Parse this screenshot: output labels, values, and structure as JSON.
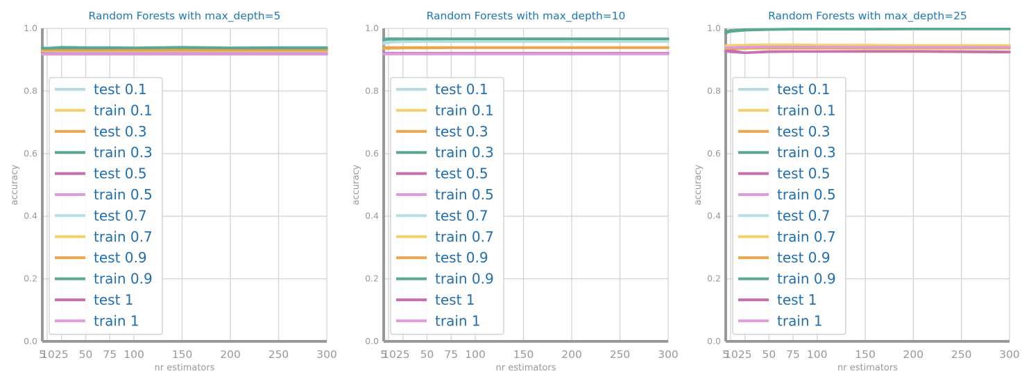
{
  "colors": {
    "title": "#1f77b4",
    "axis_label": "#999999",
    "tick_label": "#999999",
    "grid": "#d3d3d3",
    "spine": "#999999",
    "legend_text": "#1f6fb0",
    "legend_border": "#d3d3d3"
  },
  "chart_data": [
    {
      "type": "line",
      "title": "Random Forests with max_depth=5",
      "xlabel": "nr estimators",
      "ylabel": "accuracy",
      "xlim": [
        5,
        300
      ],
      "ylim": [
        0.0,
        1.0
      ],
      "xticks": [
        5,
        10,
        25,
        50,
        75,
        100,
        150,
        200,
        250,
        300
      ],
      "yticks": [
        0.0,
        0.2,
        0.4,
        0.6,
        0.8,
        1.0
      ],
      "xtick_labels": [
        "5",
        "10",
        "25",
        "50",
        "75",
        "100",
        "150",
        "200",
        "250",
        "300"
      ],
      "ytick_labels": [
        "0.0",
        "0.2",
        "0.4",
        "0.6",
        "0.8",
        "1.0"
      ],
      "grid": true,
      "legend_position": "center-left",
      "x": [
        5,
        10,
        25,
        50,
        75,
        100,
        150,
        200,
        250,
        300
      ],
      "series": [
        {
          "name": "test 0.1",
          "color": "#b5dde3",
          "values": [
            0.935,
            0.93,
            0.932,
            0.931,
            0.931,
            0.931,
            0.932,
            0.931,
            0.931,
            0.931
          ]
        },
        {
          "name": "train 0.1",
          "color": "#f2d06b",
          "values": [
            0.93,
            0.928,
            0.929,
            0.929,
            0.929,
            0.929,
            0.929,
            0.929,
            0.929,
            0.929
          ]
        },
        {
          "name": "test 0.3",
          "color": "#eaa64b",
          "values": [
            0.933,
            0.932,
            0.933,
            0.933,
            0.933,
            0.933,
            0.933,
            0.933,
            0.933,
            0.933
          ]
        },
        {
          "name": "train 0.3",
          "color": "#5aa88f",
          "values": [
            0.938,
            0.937,
            0.94,
            0.939,
            0.939,
            0.938,
            0.94,
            0.938,
            0.939,
            0.939
          ]
        },
        {
          "name": "test 0.5",
          "color": "#c96fae",
          "values": [
            0.921,
            0.919,
            0.92,
            0.92,
            0.92,
            0.92,
            0.92,
            0.92,
            0.92,
            0.92
          ]
        },
        {
          "name": "train 0.5",
          "color": "#de9bd9",
          "values": [
            0.917,
            0.917,
            0.917,
            0.917,
            0.917,
            0.917,
            0.917,
            0.917,
            0.917,
            0.917
          ]
        },
        {
          "name": "test 0.7",
          "color": "#b5dde3",
          "values": [
            0.928,
            0.928,
            0.928,
            0.928,
            0.928,
            0.928,
            0.928,
            0.928,
            0.928,
            0.928
          ]
        },
        {
          "name": "train 0.7",
          "color": "#f2d06b",
          "values": [
            0.929,
            0.929,
            0.929,
            0.929,
            0.929,
            0.929,
            0.929,
            0.929,
            0.929,
            0.929
          ]
        },
        {
          "name": "test 0.9",
          "color": "#eaa64b",
          "values": [
            0.93,
            0.93,
            0.93,
            0.93,
            0.93,
            0.93,
            0.93,
            0.93,
            0.93,
            0.93
          ]
        },
        {
          "name": "train 0.9",
          "color": "#5aa88f",
          "values": [
            0.936,
            0.936,
            0.937,
            0.937,
            0.937,
            0.937,
            0.938,
            0.937,
            0.937,
            0.937
          ]
        },
        {
          "name": "test 1",
          "color": "#c96fae",
          "values": [
            0.92,
            0.92,
            0.92,
            0.92,
            0.92,
            0.92,
            0.92,
            0.92,
            0.92,
            0.92
          ]
        },
        {
          "name": "train 1",
          "color": "#de9bd9",
          "values": [
            0.918,
            0.918,
            0.918,
            0.918,
            0.918,
            0.918,
            0.918,
            0.918,
            0.918,
            0.918
          ]
        }
      ]
    },
    {
      "type": "line",
      "title": "Random Forests with max_depth=10",
      "xlabel": "nr estimators",
      "ylabel": "accuracy",
      "xlim": [
        5,
        300
      ],
      "ylim": [
        0.0,
        1.0
      ],
      "xticks": [
        5,
        10,
        25,
        50,
        75,
        100,
        150,
        200,
        250,
        300
      ],
      "yticks": [
        0.0,
        0.2,
        0.4,
        0.6,
        0.8,
        1.0
      ],
      "xtick_labels": [
        "5",
        "10",
        "25",
        "50",
        "75",
        "100",
        "150",
        "200",
        "250",
        "300"
      ],
      "ytick_labels": [
        "0.0",
        "0.2",
        "0.4",
        "0.6",
        "0.8",
        "1.0"
      ],
      "grid": true,
      "legend_position": "center-left",
      "x": [
        5,
        10,
        25,
        50,
        75,
        100,
        150,
        200,
        250,
        300
      ],
      "series": [
        {
          "name": "test 0.1",
          "color": "#b5dde3",
          "values": [
            0.95,
            0.955,
            0.957,
            0.958,
            0.958,
            0.958,
            0.958,
            0.958,
            0.958,
            0.958
          ]
        },
        {
          "name": "train 0.1",
          "color": "#f2d06b",
          "values": [
            0.935,
            0.937,
            0.938,
            0.938,
            0.938,
            0.938,
            0.938,
            0.938,
            0.938,
            0.938
          ]
        },
        {
          "name": "test 0.3",
          "color": "#eaa64b",
          "values": [
            0.936,
            0.936,
            0.937,
            0.937,
            0.938,
            0.938,
            0.938,
            0.938,
            0.938,
            0.938
          ]
        },
        {
          "name": "train 0.3",
          "color": "#5aa88f",
          "values": [
            0.962,
            0.964,
            0.965,
            0.965,
            0.966,
            0.966,
            0.966,
            0.966,
            0.966,
            0.966
          ]
        },
        {
          "name": "test 0.5",
          "color": "#c96fae",
          "values": [
            0.921,
            0.921,
            0.921,
            0.921,
            0.921,
            0.921,
            0.921,
            0.921,
            0.921,
            0.921
          ]
        },
        {
          "name": "train 0.5",
          "color": "#de9bd9",
          "values": [
            0.918,
            0.918,
            0.918,
            0.918,
            0.918,
            0.918,
            0.918,
            0.918,
            0.918,
            0.918
          ]
        },
        {
          "name": "test 0.7",
          "color": "#b5dde3",
          "values": [
            0.955,
            0.957,
            0.958,
            0.958,
            0.958,
            0.958,
            0.958,
            0.958,
            0.958,
            0.958
          ]
        },
        {
          "name": "train 0.7",
          "color": "#f2d06b",
          "values": [
            0.939,
            0.939,
            0.939,
            0.939,
            0.939,
            0.939,
            0.939,
            0.939,
            0.939,
            0.939
          ]
        },
        {
          "name": "test 0.9",
          "color": "#eaa64b",
          "values": [
            0.939,
            0.939,
            0.939,
            0.939,
            0.939,
            0.939,
            0.939,
            0.939,
            0.939,
            0.939
          ]
        },
        {
          "name": "train 0.9",
          "color": "#5aa88f",
          "values": [
            0.966,
            0.967,
            0.967,
            0.967,
            0.967,
            0.967,
            0.967,
            0.967,
            0.967,
            0.967
          ]
        },
        {
          "name": "test 1",
          "color": "#c96fae",
          "values": [
            0.92,
            0.92,
            0.92,
            0.92,
            0.92,
            0.92,
            0.92,
            0.92,
            0.92,
            0.92
          ]
        },
        {
          "name": "train 1",
          "color": "#de9bd9",
          "values": [
            0.919,
            0.919,
            0.919,
            0.919,
            0.919,
            0.919,
            0.919,
            0.919,
            0.919,
            0.919
          ]
        }
      ]
    },
    {
      "type": "line",
      "title": "Random Forests with max_depth=25",
      "xlabel": "nr estimators",
      "ylabel": "accuracy",
      "xlim": [
        5,
        300
      ],
      "ylim": [
        0.0,
        1.0
      ],
      "xticks": [
        5,
        10,
        25,
        50,
        75,
        100,
        150,
        200,
        250,
        300
      ],
      "yticks": [
        0.0,
        0.2,
        0.4,
        0.6,
        0.8,
        1.0
      ],
      "xtick_labels": [
        "5",
        "10",
        "25",
        "50",
        "75",
        "100",
        "150",
        "200",
        "250",
        "300"
      ],
      "ytick_labels": [
        "0.0",
        "0.2",
        "0.4",
        "0.6",
        "0.8",
        "1.0"
      ],
      "grid": true,
      "legend_position": "center-left",
      "x": [
        5,
        10,
        25,
        50,
        75,
        100,
        150,
        200,
        250,
        300
      ],
      "series": [
        {
          "name": "test 0.1",
          "color": "#b5dde3",
          "values": [
            0.935,
            0.94,
            0.942,
            0.944,
            0.945,
            0.945,
            0.944,
            0.944,
            0.944,
            0.944
          ]
        },
        {
          "name": "train 0.1",
          "color": "#f2d06b",
          "values": [
            0.94,
            0.942,
            0.944,
            0.946,
            0.946,
            0.945,
            0.945,
            0.945,
            0.944,
            0.944
          ]
        },
        {
          "name": "test 0.3",
          "color": "#eaa64b",
          "values": [
            0.934,
            0.935,
            0.936,
            0.937,
            0.937,
            0.937,
            0.937,
            0.937,
            0.937,
            0.937
          ]
        },
        {
          "name": "train 0.3",
          "color": "#5aa88f",
          "values": [
            0.985,
            0.99,
            0.994,
            0.996,
            0.997,
            0.997,
            0.997,
            0.998,
            0.998,
            0.998
          ]
        },
        {
          "name": "test 0.5",
          "color": "#c96fae",
          "values": [
            0.935,
            0.93,
            0.922,
            0.926,
            0.926,
            0.926,
            0.927,
            0.927,
            0.926,
            0.925
          ]
        },
        {
          "name": "train 0.5",
          "color": "#de9bd9",
          "values": [
            0.94,
            0.941,
            0.942,
            0.943,
            0.944,
            0.943,
            0.943,
            0.942,
            0.942,
            0.942
          ]
        },
        {
          "name": "test 0.7",
          "color": "#b5dde3",
          "values": [
            0.936,
            0.938,
            0.94,
            0.941,
            0.941,
            0.941,
            0.941,
            0.941,
            0.941,
            0.941
          ]
        },
        {
          "name": "train 0.7",
          "color": "#f2d06b",
          "values": [
            0.945,
            0.946,
            0.947,
            0.948,
            0.948,
            0.947,
            0.947,
            0.946,
            0.946,
            0.946
          ]
        },
        {
          "name": "test 0.9",
          "color": "#eaa64b",
          "values": [
            0.935,
            0.936,
            0.936,
            0.937,
            0.937,
            0.937,
            0.937,
            0.937,
            0.937,
            0.937
          ]
        },
        {
          "name": "train 0.9",
          "color": "#5aa88f",
          "values": [
            0.99,
            0.994,
            0.996,
            0.997,
            0.998,
            0.998,
            0.998,
            0.998,
            0.998,
            0.998
          ]
        },
        {
          "name": "test 1",
          "color": "#c96fae",
          "values": [
            0.927,
            0.925,
            0.922,
            0.925,
            0.926,
            0.926,
            0.926,
            0.926,
            0.925,
            0.924
          ]
        },
        {
          "name": "train 1",
          "color": "#de9bd9",
          "values": [
            0.938,
            0.939,
            0.94,
            0.941,
            0.941,
            0.941,
            0.94,
            0.94,
            0.94,
            0.94
          ]
        }
      ]
    }
  ]
}
